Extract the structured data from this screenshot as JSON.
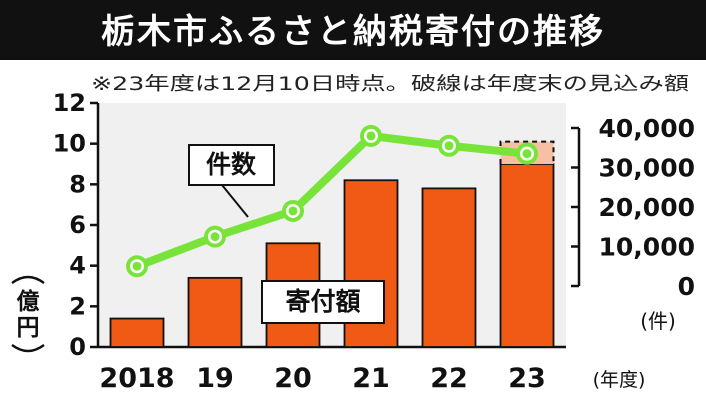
{
  "chart_data": {
    "type": "bar",
    "title": "栃木市ふるさと納税寄付の推移",
    "note": "※23年度は12月10日時点。破線は年度末の見込み額",
    "categories": [
      "2018",
      "19",
      "20",
      "21",
      "22",
      "23"
    ],
    "x_unit": "(年度)",
    "left_axis": {
      "unit": "(億円)",
      "ticks": [
        0,
        2,
        4,
        6,
        8,
        10,
        12
      ],
      "ylim": [
        0,
        12
      ]
    },
    "right_axis": {
      "unit": "(件)",
      "ticks": [
        "0",
        "10,000",
        "20,000",
        "30,000",
        "40,000"
      ],
      "ylim": [
        0,
        40000
      ]
    },
    "series": [
      {
        "name": "寄付額",
        "type": "bar",
        "axis": "left",
        "values": [
          1.4,
          3.4,
          5.1,
          8.2,
          7.8,
          9.0
        ],
        "projected_total_23": 10.1
      },
      {
        "name": "件数",
        "type": "line",
        "axis": "right",
        "values": [
          5000,
          12500,
          19000,
          38000,
          35500,
          33500
        ]
      }
    ],
    "grid": false,
    "colors": {
      "title_bg": "#111111",
      "title_text": "#ffffff",
      "plot_bg": "#f0f0f0",
      "bar": "#f05a14",
      "bar_projection": "#f6c0a2",
      "line": "#78e43a",
      "marker_ring": "#ffffff"
    }
  }
}
